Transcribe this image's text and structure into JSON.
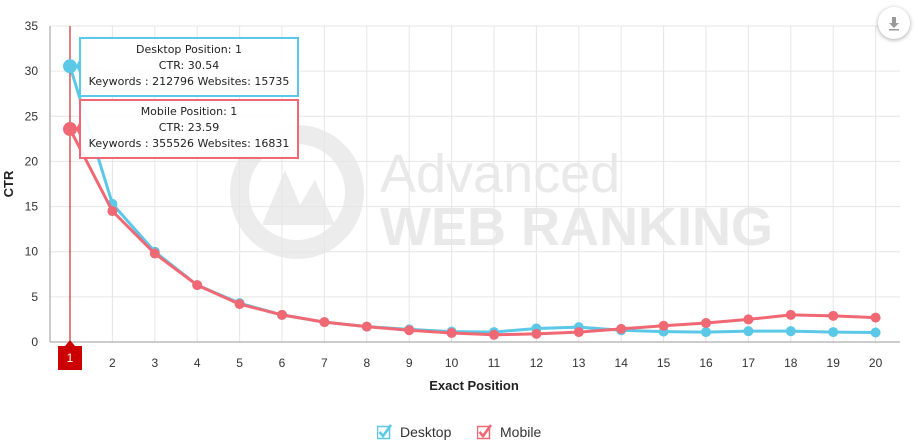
{
  "chart_data": {
    "type": "line",
    "title": "",
    "xlabel": "Exact Position",
    "ylabel": "CTR",
    "x": [
      1,
      2,
      3,
      4,
      5,
      6,
      7,
      8,
      9,
      10,
      11,
      12,
      13,
      14,
      15,
      16,
      17,
      18,
      19,
      20
    ],
    "ylim": [
      0,
      35
    ],
    "yticks": [
      0,
      5,
      10,
      15,
      20,
      25,
      30,
      35
    ],
    "grid": true,
    "legend_position": "bottom-center",
    "highlighted_x": 1,
    "series": [
      {
        "name": "Desktop",
        "color": "#5bc8e8",
        "values": [
          30.54,
          15.3,
          10.0,
          6.3,
          4.3,
          3.0,
          2.2,
          1.7,
          1.4,
          1.15,
          1.1,
          1.5,
          1.65,
          1.3,
          1.15,
          1.1,
          1.2,
          1.2,
          1.1,
          1.05
        ]
      },
      {
        "name": "Mobile",
        "color": "#f06874",
        "values": [
          23.59,
          14.5,
          9.8,
          6.3,
          4.2,
          3.0,
          2.2,
          1.7,
          1.3,
          1.0,
          0.8,
          0.9,
          1.1,
          1.45,
          1.8,
          2.1,
          2.5,
          3.0,
          2.9,
          2.7
        ]
      }
    ],
    "tooltips": [
      {
        "series": "Desktop",
        "line1": "Desktop Position: 1",
        "line2": "CTR: 30.54",
        "line3": "Keywords : 212796 Websites: 15735"
      },
      {
        "series": "Mobile",
        "line1": "Mobile Position: 1",
        "line2": "CTR: 23.59",
        "line3": "Keywords : 355526 Websites: 16831"
      }
    ]
  },
  "watermark": {
    "line1": "Advanced",
    "line2": "WEB RANKING"
  },
  "legend": [
    {
      "label": "Desktop",
      "color": "#5bc8e8",
      "checked": true
    },
    {
      "label": "Mobile",
      "color": "#f06874",
      "checked": true
    }
  ],
  "download_icon": "download-icon",
  "colors": {
    "crosshair": "#c00000",
    "highlight_tick_bg": "#cc0000",
    "grid": "#e6e6e6"
  }
}
